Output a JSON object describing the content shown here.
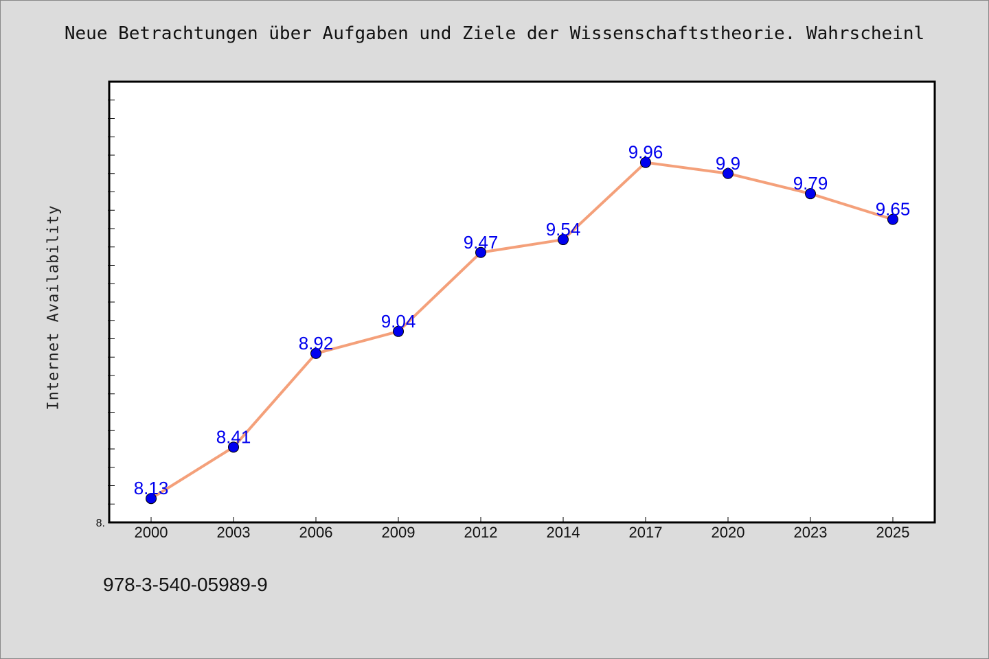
{
  "chart_data": {
    "type": "line",
    "title": "Neue Betrachtungen über Aufgaben und Ziele der Wissenschaftstheorie. Wahrscheinl",
    "xlabel": "",
    "ylabel": "Internet Availability",
    "categories": [
      "2000",
      "2003",
      "2006",
      "2009",
      "2012",
      "2014",
      "2017",
      "2020",
      "2023",
      "2025"
    ],
    "series": [
      {
        "values": [
          8.13,
          8.41,
          8.92,
          9.04,
          9.47,
          9.54,
          9.96,
          9.9,
          9.79,
          9.65
        ],
        "labels": [
          "8.13",
          "8.41",
          "8.92",
          "9.04",
          "9.47",
          "9.54",
          "9.96",
          "9.9",
          "9.79",
          "9.65"
        ]
      }
    ],
    "ylim": [
      8.0,
      10.4
    ],
    "ytick_labels": [
      "8."
    ],
    "grid": false,
    "colors": {
      "line": "#f4a07a",
      "marker": "#0000ee",
      "label": "#0000ee",
      "plot_bg": "#ffffff",
      "page_bg": "#dcdcdc"
    }
  },
  "footnote": "978-3-540-05989-9"
}
